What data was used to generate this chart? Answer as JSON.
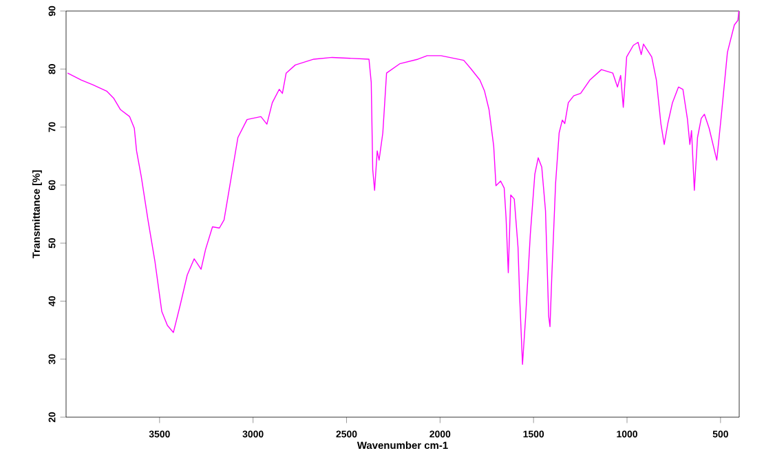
{
  "chart_data": {
    "type": "line",
    "xlabel": "Wavenumber cm-1",
    "ylabel": "Transmittance [%]",
    "xlim": [
      4000,
      400
    ],
    "ylim": [
      20,
      90
    ],
    "xticks": [
      3500,
      3000,
      2500,
      2000,
      1500,
      1000,
      500
    ],
    "yticks": [
      20,
      30,
      40,
      50,
      60,
      70,
      80,
      90
    ],
    "series": [
      {
        "color": "#ff00ff",
        "x": [
          3992,
          3918,
          3857,
          3783,
          3746,
          3709,
          3660,
          3635,
          3623,
          3598,
          3562,
          3525,
          3488,
          3458,
          3426,
          3389,
          3352,
          3315,
          3278,
          3254,
          3217,
          3180,
          3155,
          3118,
          3081,
          3032,
          2958,
          2926,
          2897,
          2860,
          2843,
          2823,
          2774,
          2675,
          2577,
          2380,
          2368,
          2360,
          2350,
          2336,
          2326,
          2306,
          2286,
          2216,
          2118,
          2069,
          1995,
          1873,
          1836,
          1787,
          1762,
          1738,
          1713,
          1701,
          1676,
          1657,
          1647,
          1635,
          1622,
          1603,
          1583,
          1574,
          1559,
          1542,
          1517,
          1493,
          1475,
          1456,
          1436,
          1419,
          1412,
          1402,
          1382,
          1363,
          1346,
          1333,
          1314,
          1285,
          1248,
          1199,
          1137,
          1076,
          1051,
          1034,
          1020,
          1002,
          966,
          941,
          924,
          912,
          868,
          843,
          819,
          801,
          782,
          757,
          725,
          701,
          677,
          664,
          655,
          640,
          623,
          603,
          586,
          561,
          520,
          495,
          463,
          426,
          407,
          402
        ],
        "values": [
          79.3,
          78.1,
          77.3,
          76.2,
          75.0,
          73.0,
          71.8,
          69.8,
          65.9,
          61.5,
          54.0,
          46.9,
          38.2,
          35.8,
          34.6,
          39.4,
          44.5,
          47.3,
          45.5,
          48.9,
          52.8,
          52.6,
          54.0,
          61.1,
          68.2,
          71.3,
          71.8,
          70.5,
          74.2,
          76.5,
          75.8,
          79.3,
          80.7,
          81.7,
          82.0,
          81.7,
          77.7,
          62.7,
          59.1,
          65.9,
          64.3,
          69.0,
          79.3,
          80.9,
          81.7,
          82.3,
          82.3,
          81.5,
          80.1,
          78.1,
          76.2,
          73.0,
          66.7,
          59.9,
          60.7,
          59.5,
          54.4,
          44.9,
          58.3,
          57.6,
          49.3,
          40.6,
          29.1,
          37.4,
          51.6,
          61.9,
          64.7,
          63.1,
          55.6,
          37.4,
          35.6,
          44.5,
          60.3,
          69.0,
          71.2,
          70.6,
          74.2,
          75.4,
          75.8,
          78.1,
          79.9,
          79.3,
          76.9,
          78.9,
          73.4,
          82.1,
          84.1,
          84.6,
          82.5,
          84.3,
          82.1,
          78.1,
          70.6,
          67.0,
          70.6,
          74.2,
          76.9,
          76.5,
          71.4,
          67.0,
          69.4,
          59.1,
          68.2,
          71.5,
          72.2,
          69.8,
          64.3,
          72.2,
          82.9,
          87.6,
          88.4,
          90.0
        ]
      }
    ]
  }
}
